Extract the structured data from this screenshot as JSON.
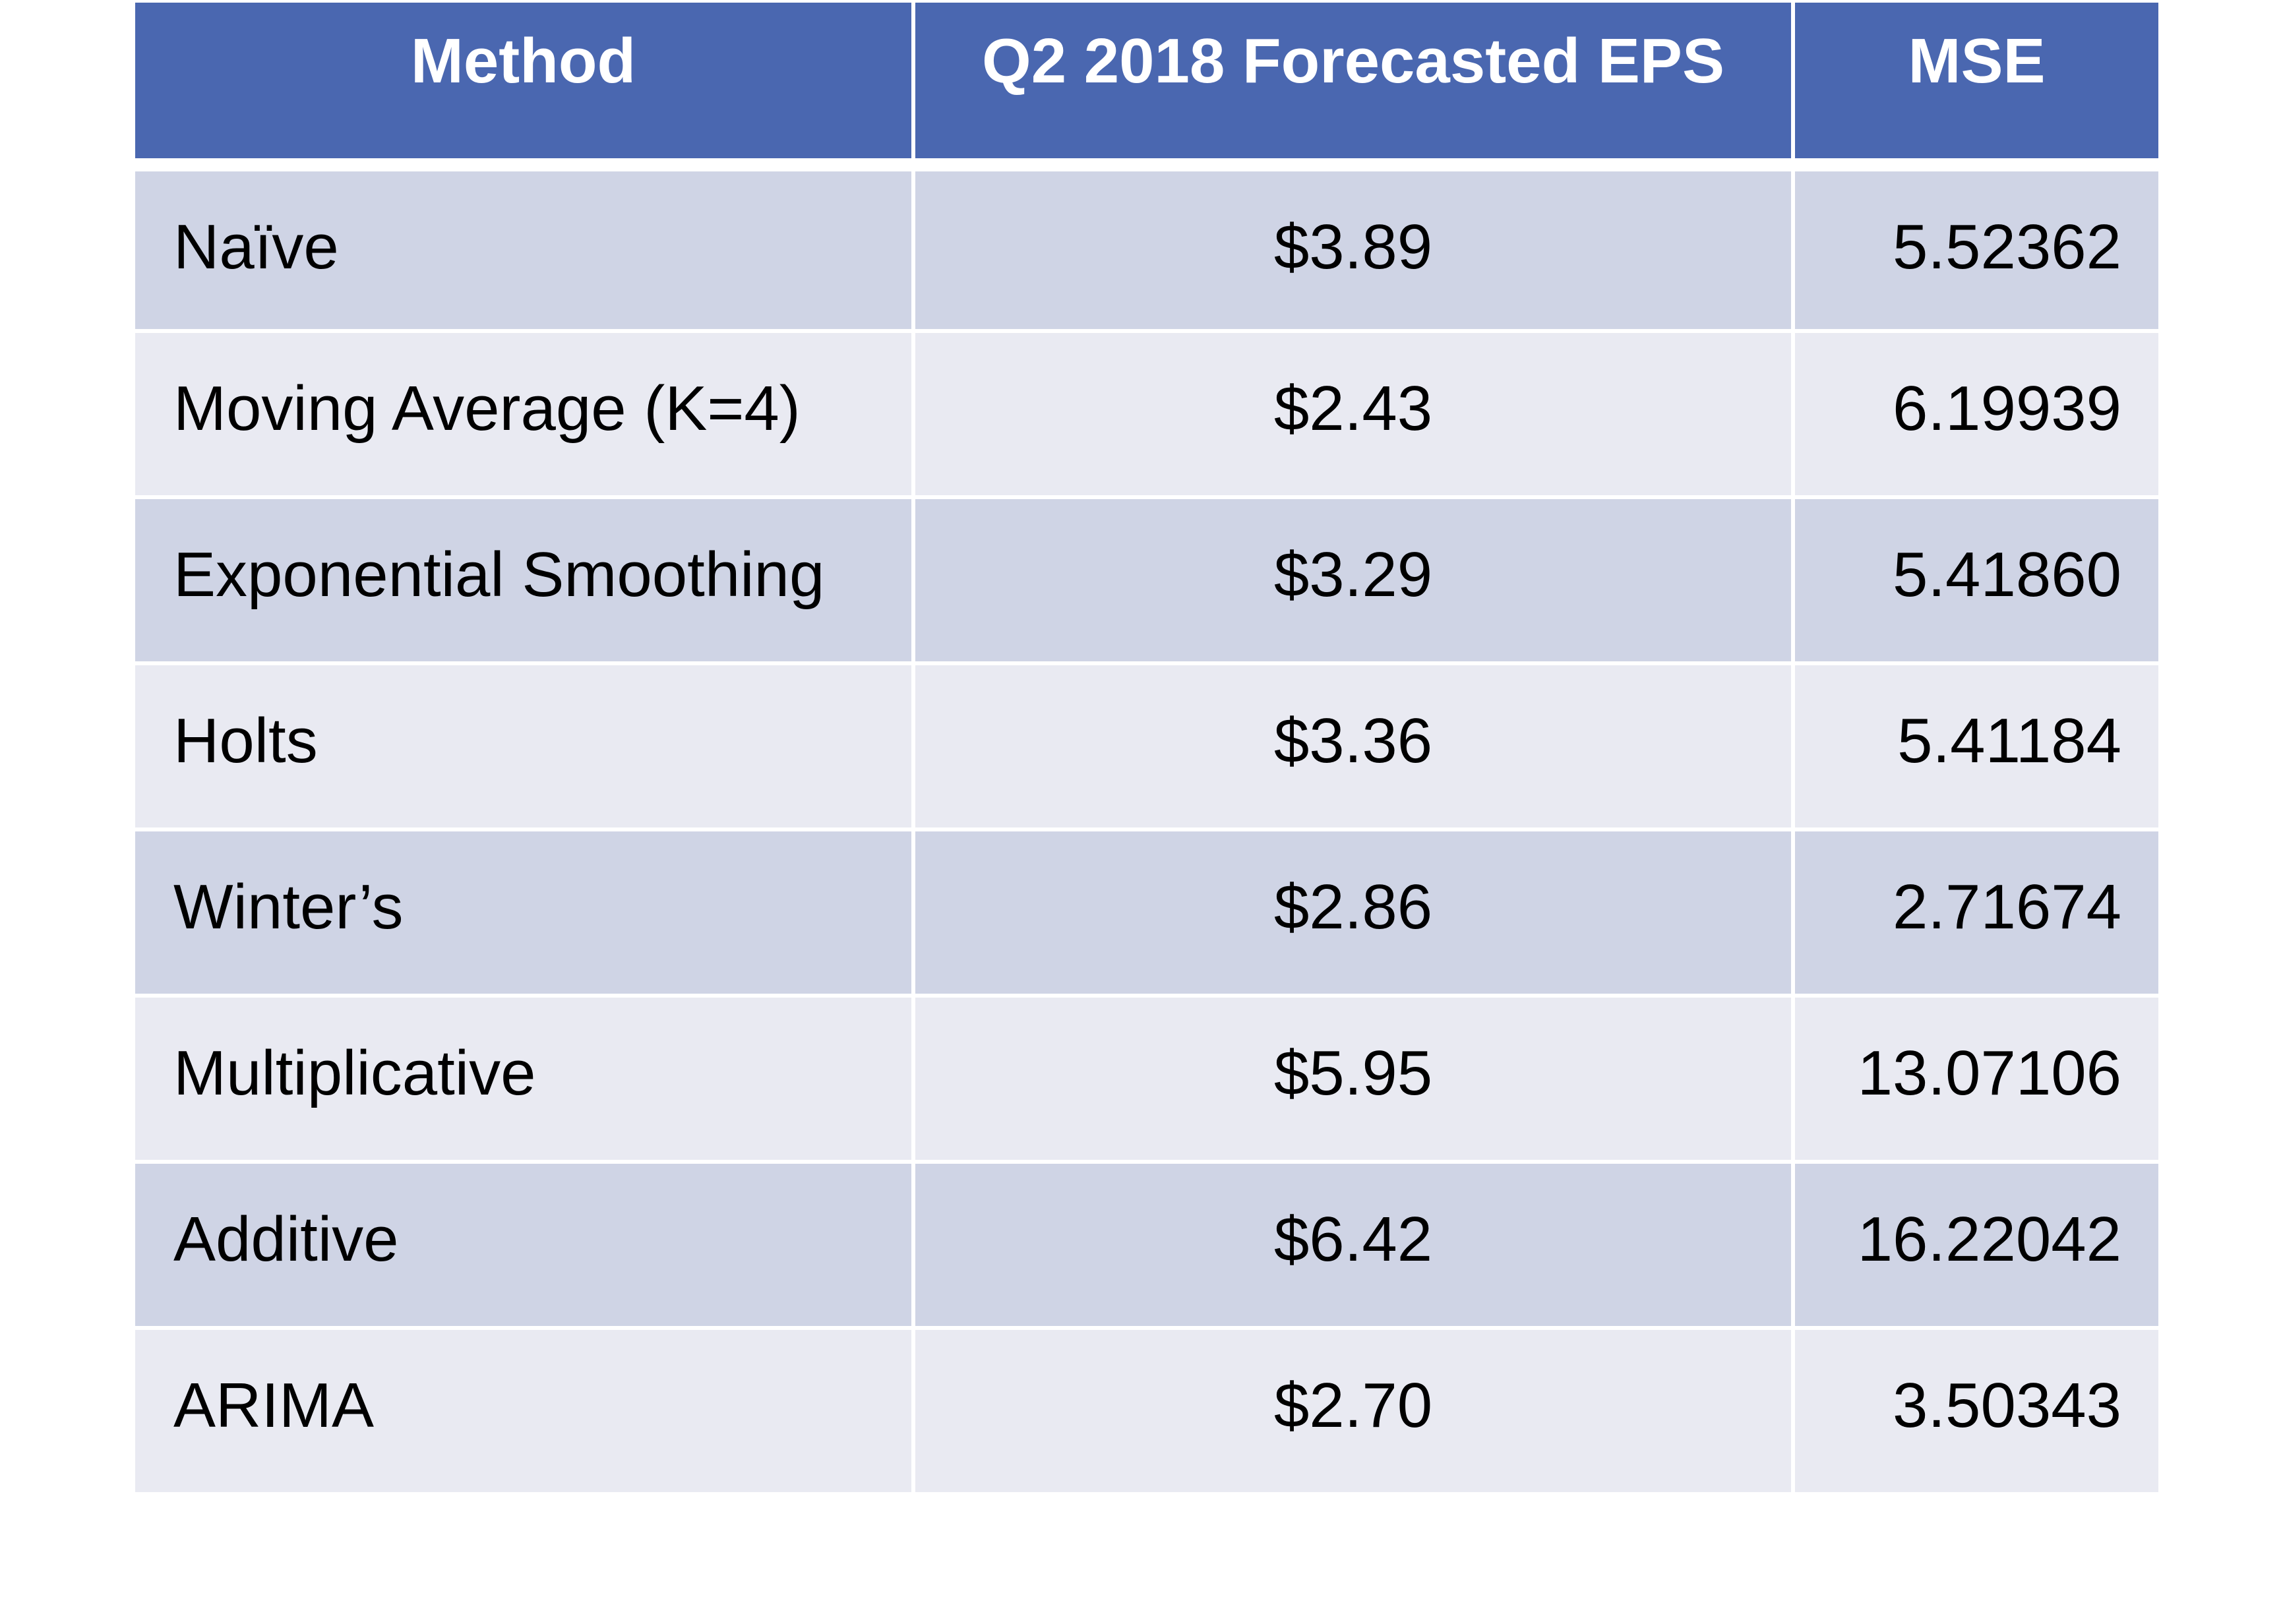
{
  "headers": {
    "method": "Method",
    "eps": "Q2 2018 Forecasted EPS",
    "mse": "MSE"
  },
  "rows": [
    {
      "method": "Naïve",
      "eps": "$3.89",
      "mse": "5.52362"
    },
    {
      "method": "Moving Average (K=4)",
      "eps": "$2.43",
      "mse": "6.19939"
    },
    {
      "method": "Exponential Smoothing",
      "eps": "$3.29",
      "mse": "5.41860"
    },
    {
      "method": "Holts",
      "eps": "$3.36",
      "mse": "5.41184"
    },
    {
      "method": "Winter’s",
      "eps": "$2.86",
      "mse": "2.71674"
    },
    {
      "method": "Multiplicative",
      "eps": "$5.95",
      "mse": "13.07106"
    },
    {
      "method": "Additive",
      "eps": "$6.42",
      "mse": "16.22042"
    },
    {
      "method": "ARIMA",
      "eps": "$2.70",
      "mse": "3.50343"
    }
  ],
  "colors": {
    "header_bg": "#4a67b0",
    "row_dark": "#cfd4e5",
    "row_light": "#e9eaf2"
  }
}
